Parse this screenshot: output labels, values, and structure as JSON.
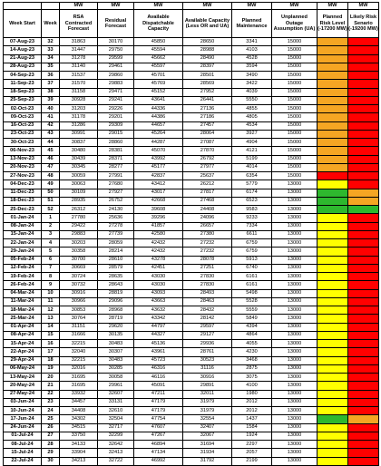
{
  "header": {
    "row1": [
      "",
      "",
      "MW",
      "MW",
      "MW",
      "MW",
      "MW",
      "MW",
      "MW",
      "MW"
    ],
    "row2": [
      "Week Start",
      "Week",
      "RSA Contracted Forecast",
      "Residual Forecast",
      "Available Dispatchable Capacity",
      "Available Capacity (Less OR and UA)",
      "Planned Maintenance",
      "Unplanned Outage Assumption (UA)",
      "Planned Risk Level (-17200 MW)",
      "Likely Risk Senario (-19200 MW)"
    ]
  },
  "colors": {
    "green": "#2eb82e",
    "yellow": "#ffff00",
    "orange": "#f5a623",
    "red": "#ff0000"
  },
  "rows": [
    [
      "07-Aug-23",
      "32",
      "31863",
      "30170",
      "45850",
      "28650",
      "3341",
      "15000",
      "orange",
      "red"
    ],
    [
      "14-Aug-23",
      "33",
      "31447",
      "29750",
      "45594",
      "28988",
      "4103",
      "15000",
      "orange",
      "red"
    ],
    [
      "21-Aug-23",
      "34",
      "31278",
      "29599",
      "45662",
      "28490",
      "4528",
      "15000",
      "orange",
      "red"
    ],
    [
      "28-Aug-23",
      "35",
      "31140",
      "29461",
      "45597",
      "28397",
      "3594",
      "15000",
      "orange",
      "red"
    ],
    [
      "04-Sep-23",
      "36",
      "31537",
      "29860",
      "45701",
      "28501",
      "3490",
      "15000",
      "orange",
      "red"
    ],
    [
      "11-Sep-23",
      "37",
      "31570",
      "29883",
      "45769",
      "28569",
      "3422",
      "15000",
      "orange",
      "red"
    ],
    [
      "18-Sep-23",
      "38",
      "31158",
      "29471",
      "45152",
      "27952",
      "4039",
      "15000",
      "orange",
      "red"
    ],
    [
      "25-Sep-23",
      "39",
      "30928",
      "29241",
      "43641",
      "26441",
      "5550",
      "15000",
      "orange",
      "red"
    ],
    [
      "02-Oct-23",
      "40",
      "31203",
      "29226",
      "44336",
      "27136",
      "4855",
      "15000",
      "orange",
      "red"
    ],
    [
      "09-Oct-23",
      "41",
      "31178",
      "29201",
      "44386",
      "27186",
      "4805",
      "15000",
      "orange",
      "red"
    ],
    [
      "16-Oct-23",
      "42",
      "31286",
      "29309",
      "44657",
      "27457",
      "4534",
      "15000",
      "orange",
      "red"
    ],
    [
      "23-Oct-23",
      "43",
      "30991",
      "29015",
      "45264",
      "28064",
      "3927",
      "15000",
      "orange",
      "red"
    ],
    [
      "30-Oct-23",
      "44",
      "30837",
      "28860",
      "44287",
      "27087",
      "4904",
      "15000",
      "orange",
      "red"
    ],
    [
      "06-Nov-23",
      "45",
      "30480",
      "28381",
      "45070",
      "27870",
      "4121",
      "15000",
      "orange",
      "red"
    ],
    [
      "13-Nov-23",
      "46",
      "30439",
      "28371",
      "43992",
      "26792",
      "5199",
      "15000",
      "orange",
      "red"
    ],
    [
      "20-Nov-23",
      "47",
      "30345",
      "28277",
      "45177",
      "27977",
      "4014",
      "15000",
      "orange",
      "red"
    ],
    [
      "27-Nov-23",
      "48",
      "30059",
      "27991",
      "42837",
      "25637",
      "6354",
      "15000",
      "red",
      "red"
    ],
    [
      "04-Dec-23",
      "49",
      "30063",
      "27680",
      "43412",
      "26212",
      "5779",
      "13000",
      "yellow",
      "red"
    ],
    [
      "11-Dec-23",
      "50",
      "30109",
      "27927",
      "43017",
      "27817",
      "6174",
      "13000",
      "green",
      "orange"
    ],
    [
      "18-Dec-23",
      "51",
      "28935",
      "26752",
      "42668",
      "27468",
      "6523",
      "13000",
      "green",
      "orange"
    ],
    [
      "25-Dec-23",
      "52",
      "26312",
      "24130",
      "39608",
      "24408",
      "9583",
      "13000",
      "green",
      "green"
    ],
    [
      "01-Jan-24",
      "1",
      "27780",
      "25636",
      "39296",
      "24096",
      "9233",
      "13000",
      "yellow",
      "red"
    ],
    [
      "08-Jan-24",
      "2",
      "29422",
      "27278",
      "41857",
      "26657",
      "7334",
      "13000",
      "yellow",
      "red"
    ],
    [
      "15-Jan-24",
      "3",
      "29883",
      "27739",
      "42580",
      "27380",
      "6611",
      "13000",
      "yellow",
      "red"
    ],
    [
      "22-Jan-24",
      "4",
      "30203",
      "28059",
      "42432",
      "27232",
      "6759",
      "13000",
      "yellow",
      "red"
    ],
    [
      "29-Jan-24",
      "5",
      "30358",
      "28214",
      "42432",
      "27232",
      "6759",
      "13000",
      "yellow",
      "red"
    ],
    [
      "05-Feb-24",
      "6",
      "30700",
      "28610",
      "43278",
      "28078",
      "5913",
      "13000",
      "yellow",
      "red"
    ],
    [
      "12-Feb-24",
      "7",
      "30669",
      "28579",
      "42451",
      "27251",
      "6740",
      "13000",
      "yellow",
      "red"
    ],
    [
      "19-Feb-24",
      "8",
      "30724",
      "28635",
      "43030",
      "27830",
      "6161",
      "13000",
      "yellow",
      "red"
    ],
    [
      "26-Feb-24",
      "9",
      "30732",
      "28643",
      "43030",
      "27830",
      "6161",
      "13000",
      "yellow",
      "red"
    ],
    [
      "04-Mar-24",
      "10",
      "30916",
      "28819",
      "43093",
      "28493",
      "5498",
      "13000",
      "yellow",
      "red"
    ],
    [
      "11-Mar-24",
      "11",
      "30966",
      "29096",
      "43663",
      "28463",
      "5528",
      "13000",
      "yellow",
      "red"
    ],
    [
      "18-Mar-24",
      "12",
      "30853",
      "28968",
      "43632",
      "28432",
      "5559",
      "13000",
      "yellow",
      "red"
    ],
    [
      "25-Mar-24",
      "13",
      "30764",
      "28719",
      "43342",
      "28142",
      "5849",
      "13000",
      "yellow",
      "red"
    ],
    [
      "01-Apr-24",
      "14",
      "31151",
      "29620",
      "44797",
      "29597",
      "4394",
      "13000",
      "yellow",
      "red"
    ],
    [
      "08-Apr-24",
      "15",
      "31666",
      "30135",
      "44327",
      "29127",
      "4864",
      "13000",
      "yellow",
      "red"
    ],
    [
      "15-Apr-24",
      "16",
      "32215",
      "30483",
      "45136",
      "29936",
      "4055",
      "13000",
      "yellow",
      "red"
    ],
    [
      "22-Apr-24",
      "17",
      "32040",
      "30307",
      "43961",
      "28761",
      "4230",
      "13000",
      "yellow",
      "red"
    ],
    [
      "29-Apr-24",
      "18",
      "32215",
      "30483",
      "45723",
      "30523",
      "3468",
      "13000",
      "yellow",
      "red"
    ],
    [
      "06-May-24",
      "19",
      "32016",
      "30285",
      "46316",
      "31116",
      "2875",
      "13000",
      "yellow",
      "red"
    ],
    [
      "13-May-24",
      "20",
      "31695",
      "30058",
      "46116",
      "30916",
      "3075",
      "13000",
      "yellow",
      "red"
    ],
    [
      "20-May-24",
      "21",
      "31695",
      "29961",
      "45091",
      "29891",
      "4100",
      "13000",
      "yellow",
      "red"
    ],
    [
      "27-May-24",
      "22",
      "33932",
      "32607",
      "47211",
      "32011",
      "1980",
      "13000",
      "yellow",
      "red"
    ],
    [
      "03-Jun-24",
      "23",
      "34457",
      "33131",
      "47179",
      "31979",
      "2012",
      "13000",
      "yellow",
      "red"
    ],
    [
      "10-Jun-24",
      "24",
      "34408",
      "32610",
      "47179",
      "31979",
      "2012",
      "13000",
      "yellow",
      "red"
    ],
    [
      "17-Jun-24",
      "25",
      "34302",
      "32504",
      "47754",
      "32554",
      "1437",
      "13000",
      "green",
      "orange"
    ],
    [
      "24-Jun-24",
      "26",
      "34515",
      "32717",
      "47607",
      "32407",
      "1584",
      "13000",
      "yellow",
      "red"
    ],
    [
      "01-Jul-24",
      "27",
      "33750",
      "32299",
      "47267",
      "32067",
      "1924",
      "13000",
      "yellow",
      "red"
    ],
    [
      "08-Jul-24",
      "28",
      "34133",
      "32642",
      "46894",
      "31694",
      "2297",
      "13000",
      "yellow",
      "red"
    ],
    [
      "15-Jul-24",
      "29",
      "33904",
      "32413",
      "47134",
      "31934",
      "2057",
      "13000",
      "yellow",
      "red"
    ],
    [
      "22-Jul-24",
      "30",
      "34213",
      "32722",
      "46992",
      "31792",
      "2199",
      "13000",
      "yellow",
      "red"
    ]
  ]
}
